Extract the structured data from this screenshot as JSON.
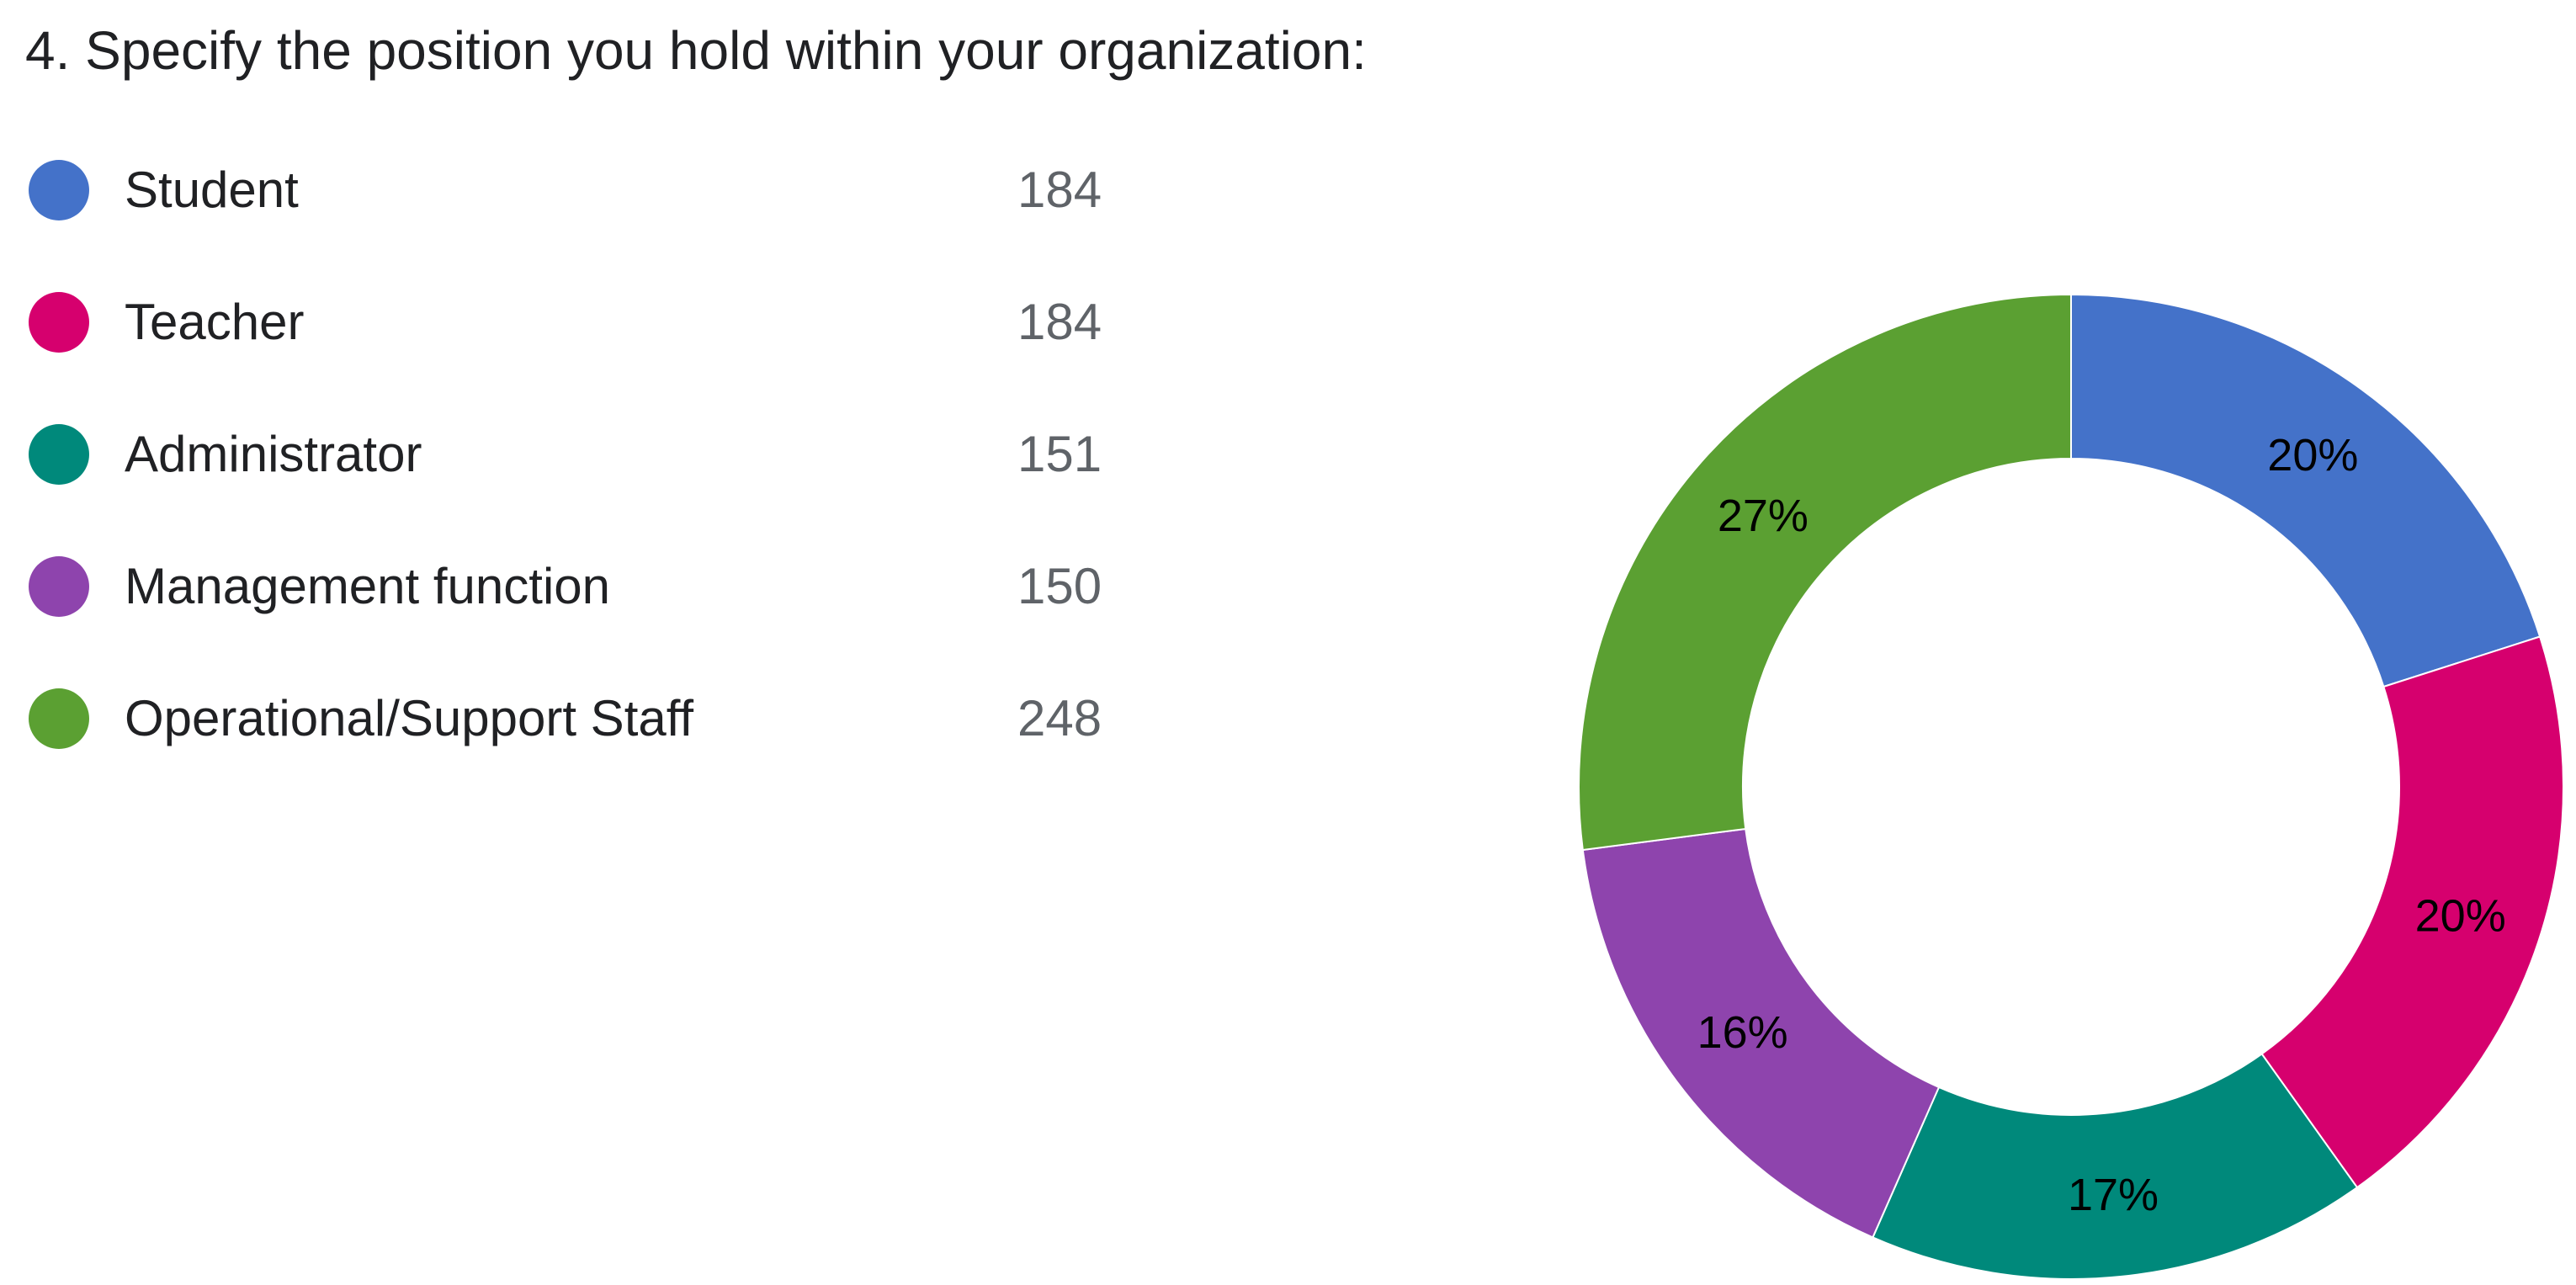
{
  "question": {
    "title": "4. Specify the position you hold within your organization:"
  },
  "chart_data": {
    "type": "pie",
    "donut": true,
    "categories": [
      "Student",
      "Teacher",
      "Administrator",
      "Management function",
      "Operational/Support Staff"
    ],
    "values": [
      184,
      184,
      151,
      150,
      248
    ],
    "percent_labels": [
      "20%",
      "20%",
      "17%",
      "16%",
      "27%"
    ],
    "colors": [
      "#4472c9",
      "#d6006e",
      "#00897b",
      "#8e44ad",
      "#5ba032"
    ],
    "legend_position": "left"
  }
}
